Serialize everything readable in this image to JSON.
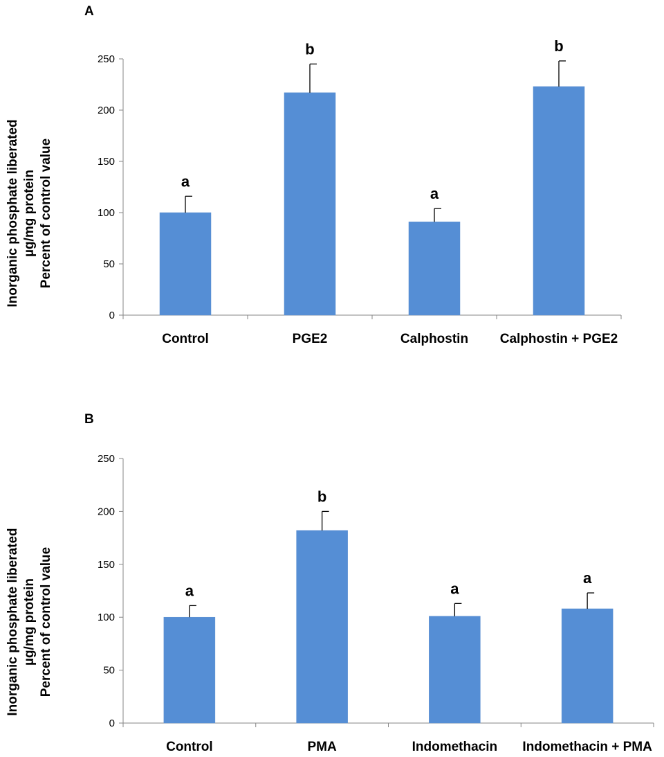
{
  "chart_data": [
    {
      "type": "bar",
      "panel_label": "A",
      "categories": [
        "Control",
        "PGE2",
        "Calphostin",
        "Calphostin + PGE2"
      ],
      "values": [
        100,
        217,
        91,
        223
      ],
      "errors": [
        16,
        28,
        13,
        25
      ],
      "significance": [
        "a",
        "b",
        "a",
        "b"
      ],
      "ylabel": [
        "Inorganic phosphate liberated",
        "µg/mg protein",
        "Percent of control value"
      ],
      "ylim": [
        0,
        250
      ],
      "yticks": [
        0,
        50,
        100,
        150,
        200,
        250
      ],
      "grid": false,
      "bar_color": "#558ed5"
    },
    {
      "type": "bar",
      "panel_label": "B",
      "categories": [
        "Control",
        "PMA",
        "Indomethacin",
        "Indomethacin + PMA"
      ],
      "values": [
        100,
        182,
        101,
        108
      ],
      "errors": [
        11,
        18,
        12,
        15
      ],
      "significance": [
        "a",
        "b",
        "a",
        "a"
      ],
      "ylabel": [
        "Inorganic phosphate liberated",
        "µg/mg protein",
        "Percent of control value"
      ],
      "ylim": [
        0,
        250
      ],
      "yticks": [
        0,
        50,
        100,
        150,
        200,
        250
      ],
      "grid": false,
      "bar_color": "#558ed5"
    }
  ]
}
